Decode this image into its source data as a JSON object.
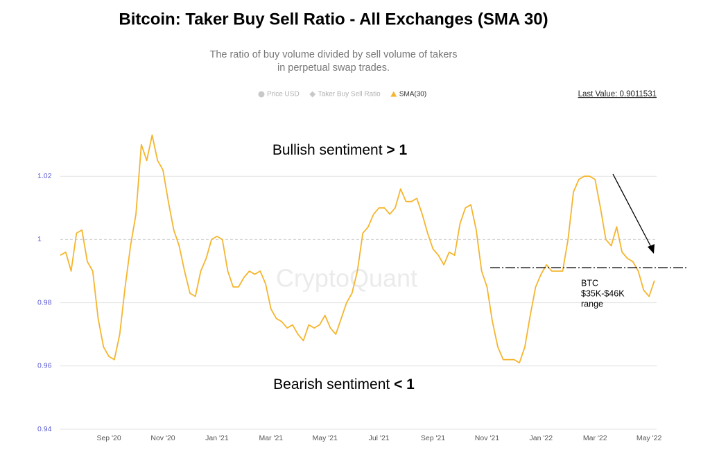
{
  "chart_data": {
    "type": "line",
    "title": "Bitcoin: Taker Buy Sell Ratio - All Exchanges (SMA 30)",
    "subtitle": [
      "The ratio of buy volume divided by sell volume of takers",
      "in perpetual swap trades."
    ],
    "legend": [
      {
        "name": "Price USD",
        "color": "#c8c8c8",
        "marker": "circle"
      },
      {
        "name": "Taker Buy Sell Ratio",
        "color": "#c8c8c8",
        "marker": "diamond"
      }
    ],
    "last_value_label": "Last Value: 0.9011531",
    "watermark": "CryptoQuant",
    "annotations": {
      "bullish": [
        "Bullish sentiment ",
        "> 1"
      ],
      "bearish": [
        "Bearish sentiment ",
        "< 1"
      ],
      "range": [
        "BTC",
        "$35K-$46K",
        "range"
      ]
    },
    "categories": [
      null,
      null,
      null,
      null,
      null,
      null,
      null,
      null,
      null,
      "Sep '20",
      null,
      null,
      null,
      null,
      null,
      null,
      null,
      null,
      null,
      "Nov '20",
      null,
      null,
      null,
      null,
      null,
      null,
      null,
      null,
      null,
      "Jan '21",
      null,
      null,
      null,
      null,
      null,
      null,
      null,
      null,
      null,
      "Mar '21",
      null,
      null,
      null,
      null,
      null,
      null,
      null,
      null,
      null,
      "May '21",
      null,
      null,
      null,
      null,
      null,
      null,
      null,
      null,
      null,
      "Jul '21",
      null,
      null,
      null,
      null,
      null,
      null,
      null,
      null,
      null,
      "Sep '21",
      null,
      null,
      null,
      null,
      null,
      null,
      null,
      null,
      null,
      "Nov '21",
      null,
      null,
      null,
      null,
      null,
      null,
      null,
      null,
      null,
      "Jan '22",
      null,
      null,
      null,
      null,
      null,
      null,
      null,
      null,
      null,
      "Mar '22",
      null,
      null,
      null,
      null,
      null,
      null,
      null,
      null,
      null,
      "May '22",
      null
    ],
    "series": [
      {
        "name": "SMA(30)",
        "color": "#f5b52e",
        "marker": "triangle",
        "values": [
          0.995,
          0.996,
          0.99,
          1.002,
          1.003,
          0.993,
          0.99,
          0.975,
          0.966,
          0.963,
          0.962,
          0.97,
          0.985,
          0.998,
          1.008,
          1.03,
          1.025,
          1.033,
          1.025,
          1.022,
          1.012,
          1.003,
          0.998,
          0.99,
          0.983,
          0.982,
          0.99,
          0.994,
          1.0,
          1.001,
          1.0,
          0.99,
          0.985,
          0.985,
          0.988,
          0.99,
          0.989,
          0.99,
          0.986,
          0.978,
          0.975,
          0.974,
          0.972,
          0.973,
          0.97,
          0.968,
          0.973,
          0.972,
          0.973,
          0.976,
          0.972,
          0.97,
          0.975,
          0.98,
          0.983,
          0.99,
          1.002,
          1.004,
          1.008,
          1.01,
          1.01,
          1.008,
          1.01,
          1.016,
          1.012,
          1.012,
          1.013,
          1.008,
          1.002,
          0.997,
          0.995,
          0.992,
          0.996,
          0.995,
          1.005,
          1.01,
          1.011,
          1.003,
          0.99,
          0.985,
          0.974,
          0.966,
          0.962,
          0.962,
          0.962,
          0.961,
          0.966,
          0.976,
          0.985,
          0.989,
          0.992,
          0.99,
          0.99,
          0.99,
          1.0,
          1.015,
          1.019,
          1.02,
          1.02,
          1.019,
          1.01,
          1.0,
          0.998,
          1.004,
          0.996,
          0.994,
          0.993,
          0.99,
          0.984,
          0.982,
          0.987
        ]
      }
    ],
    "ylim": [
      0.94,
      1.04
    ],
    "yticks": [
      0.94,
      0.96,
      0.98,
      1,
      1.02
    ],
    "reference_line": 1,
    "grid": true
  }
}
